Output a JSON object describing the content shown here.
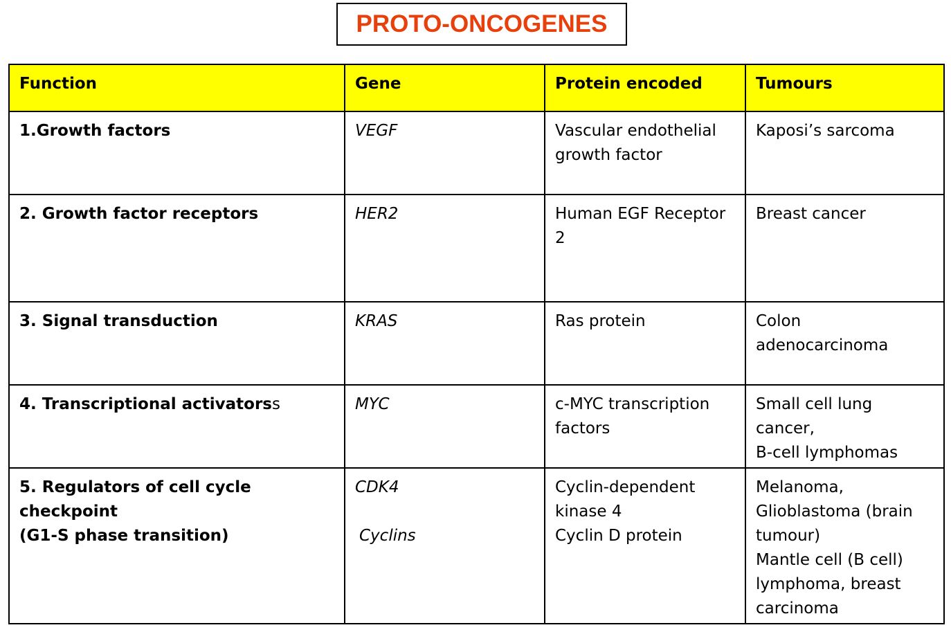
{
  "title": "PROTO-ONCOGENES",
  "colors": {
    "title": "#e8400c",
    "header_bg": "#ffff00",
    "border": "#000000"
  },
  "table": {
    "headers": [
      "Function",
      "Gene",
      "Protein encoded",
      "Tumours"
    ],
    "rows": [
      {
        "function": [
          "1.Growth factors"
        ],
        "function_suffix": "",
        "gene": [
          "VEGF"
        ],
        "protein": [
          "Vascular endothelial",
          "growth factor"
        ],
        "tumours": [
          "Kaposi’s sarcoma"
        ]
      },
      {
        "function": [
          "2. Growth factor receptors"
        ],
        "function_suffix": "",
        "gene": [
          "HER2"
        ],
        "protein": [
          "Human EGF Receptor",
          "2"
        ],
        "tumours": [
          "Breast cancer"
        ]
      },
      {
        "function": [
          "3. Signal transduction"
        ],
        "function_suffix": "",
        "gene": [
          "KRAS"
        ],
        "protein": [
          "Ras protein"
        ],
        "tumours": [
          "Colon",
          "adenocarcinoma"
        ]
      },
      {
        "function": [
          "4. Transcriptional activators"
        ],
        "function_suffix": "s",
        "gene": [
          "MYC"
        ],
        "protein": [
          "c-MYC transcription",
          "factors"
        ],
        "tumours": [
          "Small cell lung",
          "cancer,",
          "B-cell lymphomas"
        ]
      },
      {
        "function": [
          "5. Regulators of cell cycle checkpoint",
          "(G1-S phase transition)"
        ],
        "function_suffix": "",
        "gene": [
          "CDK4",
          "Cyclins"
        ],
        "protein": [
          "Cyclin-dependent",
          "kinase 4",
          "Cyclin D protein"
        ],
        "tumours": [
          "Melanoma,",
          "Glioblastoma (brain",
          "tumour)",
          "Mantle cell (B cell)",
          "lymphoma, breast",
          "carcinoma"
        ]
      }
    ]
  }
}
